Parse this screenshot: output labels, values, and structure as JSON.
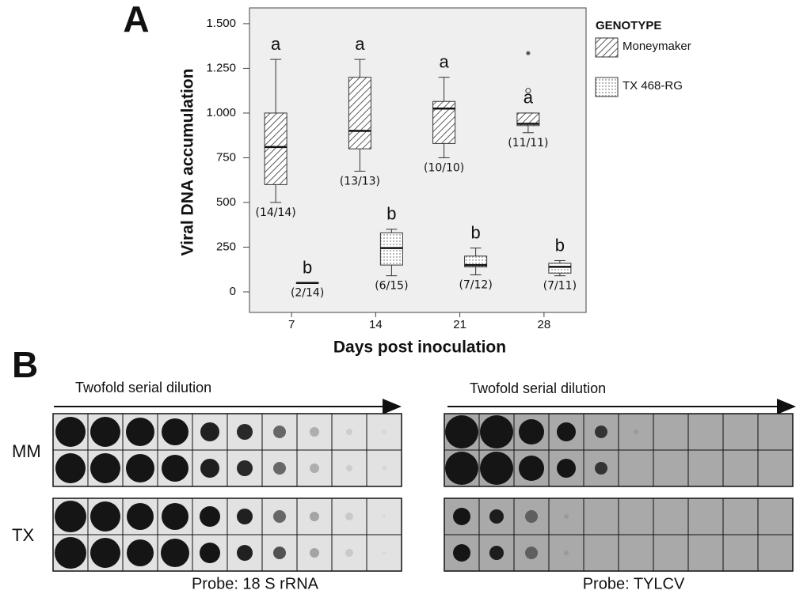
{
  "panel_a_label": "A",
  "chart_data": {
    "type": "boxplot",
    "ylabel": "Viral DNA accumulation",
    "xlabel": "Days post inoculation",
    "categories": [
      "7",
      "14",
      "21",
      "28"
    ],
    "ylim": [
      -115,
      1588
    ],
    "yticks": [
      0,
      250,
      500,
      750,
      {
        "value": 1000,
        "label": "1.000"
      },
      {
        "value": 1250,
        "label": "1.250"
      },
      {
        "value": 1500,
        "label": "1.500"
      }
    ],
    "legend_title": "GENOTYPE",
    "series": [
      {
        "name": "Moneymaker",
        "color": "#333333",
        "pattern": "hatch",
        "min": [
          500,
          675,
          750,
          890
        ],
        "q1": [
          600,
          800,
          830,
          930
        ],
        "median": [
          810,
          900,
          1025,
          940
        ],
        "q3": [
          1000,
          1200,
          1065,
          1000
        ],
        "max": [
          1300,
          1300,
          1200,
          1000
        ],
        "outliers": [
          [],
          [],
          [],
          [
            1125
          ]
        ],
        "extremes": [
          [],
          [],
          [],
          [
            1335
          ]
        ],
        "letters": [
          "a",
          "a",
          "a",
          "a"
        ],
        "counts": [
          "(14/14)",
          "(13/13)",
          "(10/10)",
          "(11/11)"
        ]
      },
      {
        "name": "TX 468-RG",
        "color": "#333333",
        "pattern": "dots",
        "min": [
          50,
          90,
          95,
          90
        ],
        "q1": [
          50,
          150,
          140,
          105
        ],
        "median": [
          50,
          245,
          150,
          140
        ],
        "q3": [
          50,
          330,
          200,
          160
        ],
        "max": [
          50,
          350,
          245,
          175
        ],
        "outliers": [
          [],
          [],
          [],
          []
        ],
        "extremes": [
          [],
          [],
          [],
          []
        ],
        "letters": [
          "b",
          "b",
          "b",
          "b"
        ],
        "counts": [
          "(2/14)",
          "(6/15)",
          "(7/12)",
          "(7/11)"
        ]
      }
    ]
  },
  "panel_b": {
    "label": "B",
    "row_labels": [
      "MM",
      "TX"
    ],
    "blots": [
      {
        "arrow_label": "Twofold serial dilution",
        "probe": "Probe: 18 S rRNA"
      },
      {
        "arrow_label": "Twofold serial dilution",
        "probe": "Probe: TYLCV"
      }
    ]
  }
}
